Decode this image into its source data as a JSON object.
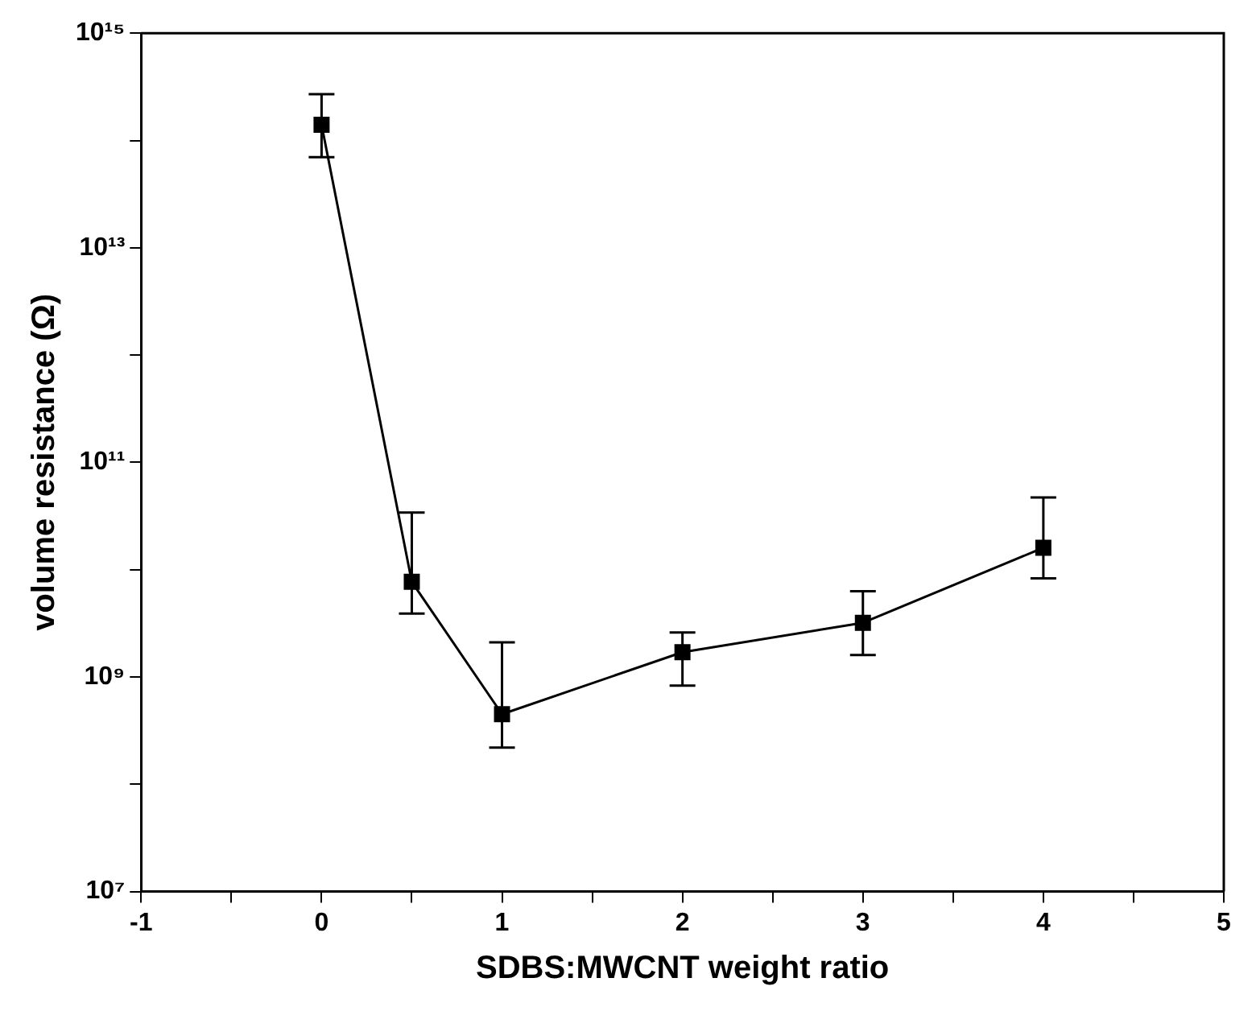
{
  "chart_data": {
    "type": "line",
    "xlabel": "SDBS:MWCNT weight ratio",
    "ylabel": "volume resistance (Ω)",
    "x": [
      0,
      0.5,
      1,
      2,
      3,
      4
    ],
    "series": [
      {
        "color": "#000000",
        "values": [
          140000000000000.0,
          7700000000.0,
          450000000.0,
          1700000000.0,
          3200000000.0,
          16000000000.0
        ],
        "errors": [
          [
            70000000000000.0,
            270000000000000.0
          ],
          [
            3900000000.0,
            34000000000.0
          ],
          [
            220000000.0,
            2100000000.0
          ],
          [
            830000000.0,
            2600000000.0
          ],
          [
            1600000000.0,
            6300000000.0
          ],
          [
            8300000000.0,
            47000000000.0
          ]
        ]
      }
    ],
    "log": "y",
    "grid": false,
    "legend": false,
    "marker": "square",
    "line_style": "solid",
    "xlim": [
      -1,
      5
    ],
    "xticks": [
      -1,
      {
        "value": -0.5,
        "label": null
      },
      0,
      {
        "value": 0.5,
        "label": null
      },
      1,
      {
        "value": 1.5,
        "label": null
      },
      2,
      {
        "value": 2.5,
        "label": null
      },
      3,
      {
        "value": 3.5,
        "label": null
      },
      4,
      {
        "value": 4.5,
        "label": null
      },
      5
    ],
    "ylim": [
      10000000.0,
      1000000000000000.0
    ],
    "yticks": [
      {
        "value": 10000000.0,
        "label": "10⁷"
      },
      {
        "value": 100000000.0,
        "label": null
      },
      {
        "value": 1000000000.0,
        "label": "10⁹"
      },
      {
        "value": 10000000000.0,
        "label": null
      },
      {
        "value": 100000000000.0,
        "label": "10¹¹"
      },
      {
        "value": 1000000000000.0,
        "label": null
      },
      {
        "value": 10000000000000.0,
        "label": "10¹³"
      },
      {
        "value": 100000000000000.0,
        "label": null
      },
      {
        "value": 1000000000000000.0,
        "label": "10¹⁵"
      }
    ]
  }
}
